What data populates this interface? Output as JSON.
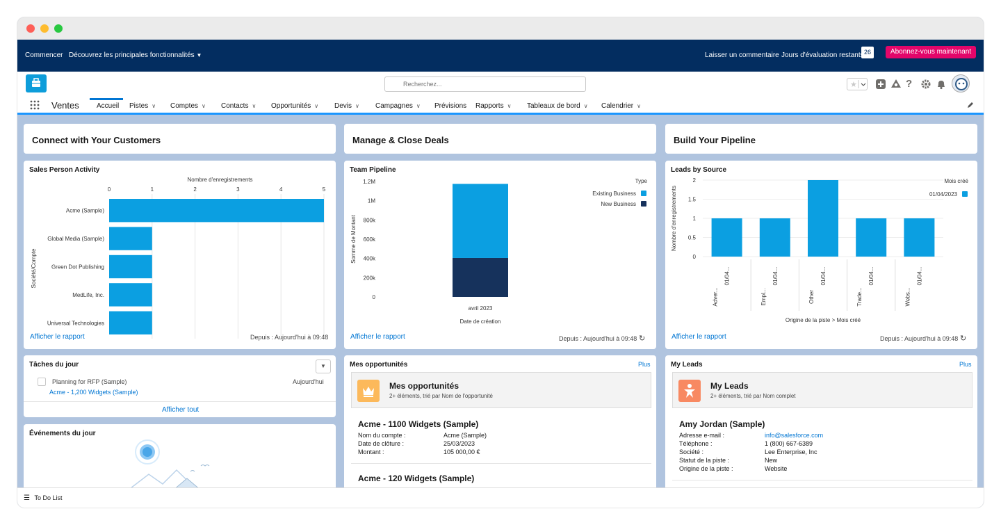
{
  "topbar": {
    "start": "Commencer",
    "discover": "Découvrez les principales fonctionnalités",
    "feedback": "Laisser un commentaire",
    "trial_days_label": "Jours d'évaluation restants",
    "trial_days": "26",
    "subscribe": "Abonnez-vous maintenant"
  },
  "search": {
    "placeholder": "Recherchez..."
  },
  "nav": {
    "app_name": "Ventes",
    "items": [
      {
        "label": "Accueil",
        "active": true
      },
      {
        "label": "Pistes"
      },
      {
        "label": "Comptes"
      },
      {
        "label": "Contacts"
      },
      {
        "label": "Opportunités"
      },
      {
        "label": "Devis"
      },
      {
        "label": "Campagnes"
      },
      {
        "label": "Prévisions"
      },
      {
        "label": "Rapports"
      },
      {
        "label": "Tableaux de bord"
      },
      {
        "label": "Calendrier"
      }
    ]
  },
  "banners": {
    "connect": "Connect with Your Customers",
    "manage": "Manage & Close Deals",
    "build": "Build Your Pipeline"
  },
  "charts": {
    "view_report": "Afficher le rapport",
    "since": "Depuis : Aujourd'hui à 09:48"
  },
  "chart_data": [
    {
      "type": "bar",
      "orientation": "horizontal",
      "title": "Sales Person Activity",
      "xlabel": "Nombre d'enregistrements",
      "ylabel": "Société/Compte",
      "categories": [
        "Acme (Sample)",
        "Global Media (Sample)",
        "Green Dot Publishing",
        "MedLife, Inc.",
        "Universal Technologies"
      ],
      "values": [
        5,
        1,
        1,
        1,
        1
      ],
      "xlim": [
        0,
        5
      ],
      "ticks": [
        "0",
        "1",
        "2",
        "3",
        "4",
        "5"
      ],
      "grid": true,
      "color": "#0b9fe1"
    },
    {
      "type": "bar",
      "stacked": true,
      "title": "Team Pipeline",
      "xlabel": "Date de création",
      "ylabel": "Somme de Montant",
      "categories": [
        "avril 2023"
      ],
      "ylim": [
        0,
        1200000
      ],
      "ticks": [
        "0",
        "200k",
        "400k",
        "600k",
        "800k",
        "1M",
        "1.2M"
      ],
      "legend_title": "Type",
      "legend_position": "top-right",
      "series": [
        {
          "name": "New Business",
          "values": [
            405000
          ],
          "color": "#16325c"
        },
        {
          "name": "Existing Business",
          "values": [
            770000
          ],
          "color": "#0b9fe1"
        }
      ]
    },
    {
      "type": "bar",
      "title": "Leads by Source",
      "xlabel": "Origine de la piste > Mois créé",
      "ylabel": "Nombre d'enregistrements",
      "categories": [
        "Adver...",
        "Empl...",
        "Other",
        "Trade...",
        "Webs..."
      ],
      "subcategory_label": "01/04...",
      "values": [
        1,
        1,
        2,
        1,
        1
      ],
      "ylim": [
        0,
        2
      ],
      "ticks": [
        "0",
        "0.5",
        "1",
        "1.5",
        "2"
      ],
      "legend_title": "Mois créé",
      "legend_position": "top-right",
      "series": [
        {
          "name": "01/04/2023",
          "values": [
            1,
            1,
            2,
            1,
            1
          ],
          "color": "#0b9fe1"
        }
      ]
    }
  ],
  "tasks": {
    "title": "Tâches du jour",
    "item_name": "Planning for RFP (Sample)",
    "item_when": "Aujourd'hui",
    "item_related": "Acme - 1,200 Widgets (Sample)",
    "view_all": "Afficher tout"
  },
  "events": {
    "title": "Événements du jour"
  },
  "opportunities": {
    "title": "Mes opportunités",
    "more": "Plus",
    "list_title": "Mes opportunités",
    "list_sub": "2+ éléments, trié par Nom de l'opportunité",
    "items": [
      {
        "name": "Acme - 1100 Widgets (Sample)",
        "fields": [
          {
            "k": "Nom du compte :",
            "v": "Acme (Sample)"
          },
          {
            "k": "Date de clôture :",
            "v": "25/03/2023"
          },
          {
            "k": "Montant :",
            "v": "105 000,00 €"
          }
        ]
      },
      {
        "name": "Acme - 120 Widgets (Sample)"
      }
    ]
  },
  "leads": {
    "title": "My Leads",
    "more": "Plus",
    "list_title": "My Leads",
    "list_sub": "2+ éléments, trié par Nom complet",
    "item": {
      "name": "Amy Jordan (Sample)",
      "fields": [
        {
          "k": "Adresse e-mail :",
          "v": "info@salesforce.com",
          "link": true
        },
        {
          "k": "Téléphone :",
          "v": "1 (800) 667-6389"
        },
        {
          "k": "Société :",
          "v": "Lee Enterprise, Inc"
        },
        {
          "k": "Statut de la piste :",
          "v": "New"
        },
        {
          "k": "Origine de la piste :",
          "v": "Website"
        }
      ]
    }
  },
  "footer": {
    "todo": "To Do List"
  }
}
